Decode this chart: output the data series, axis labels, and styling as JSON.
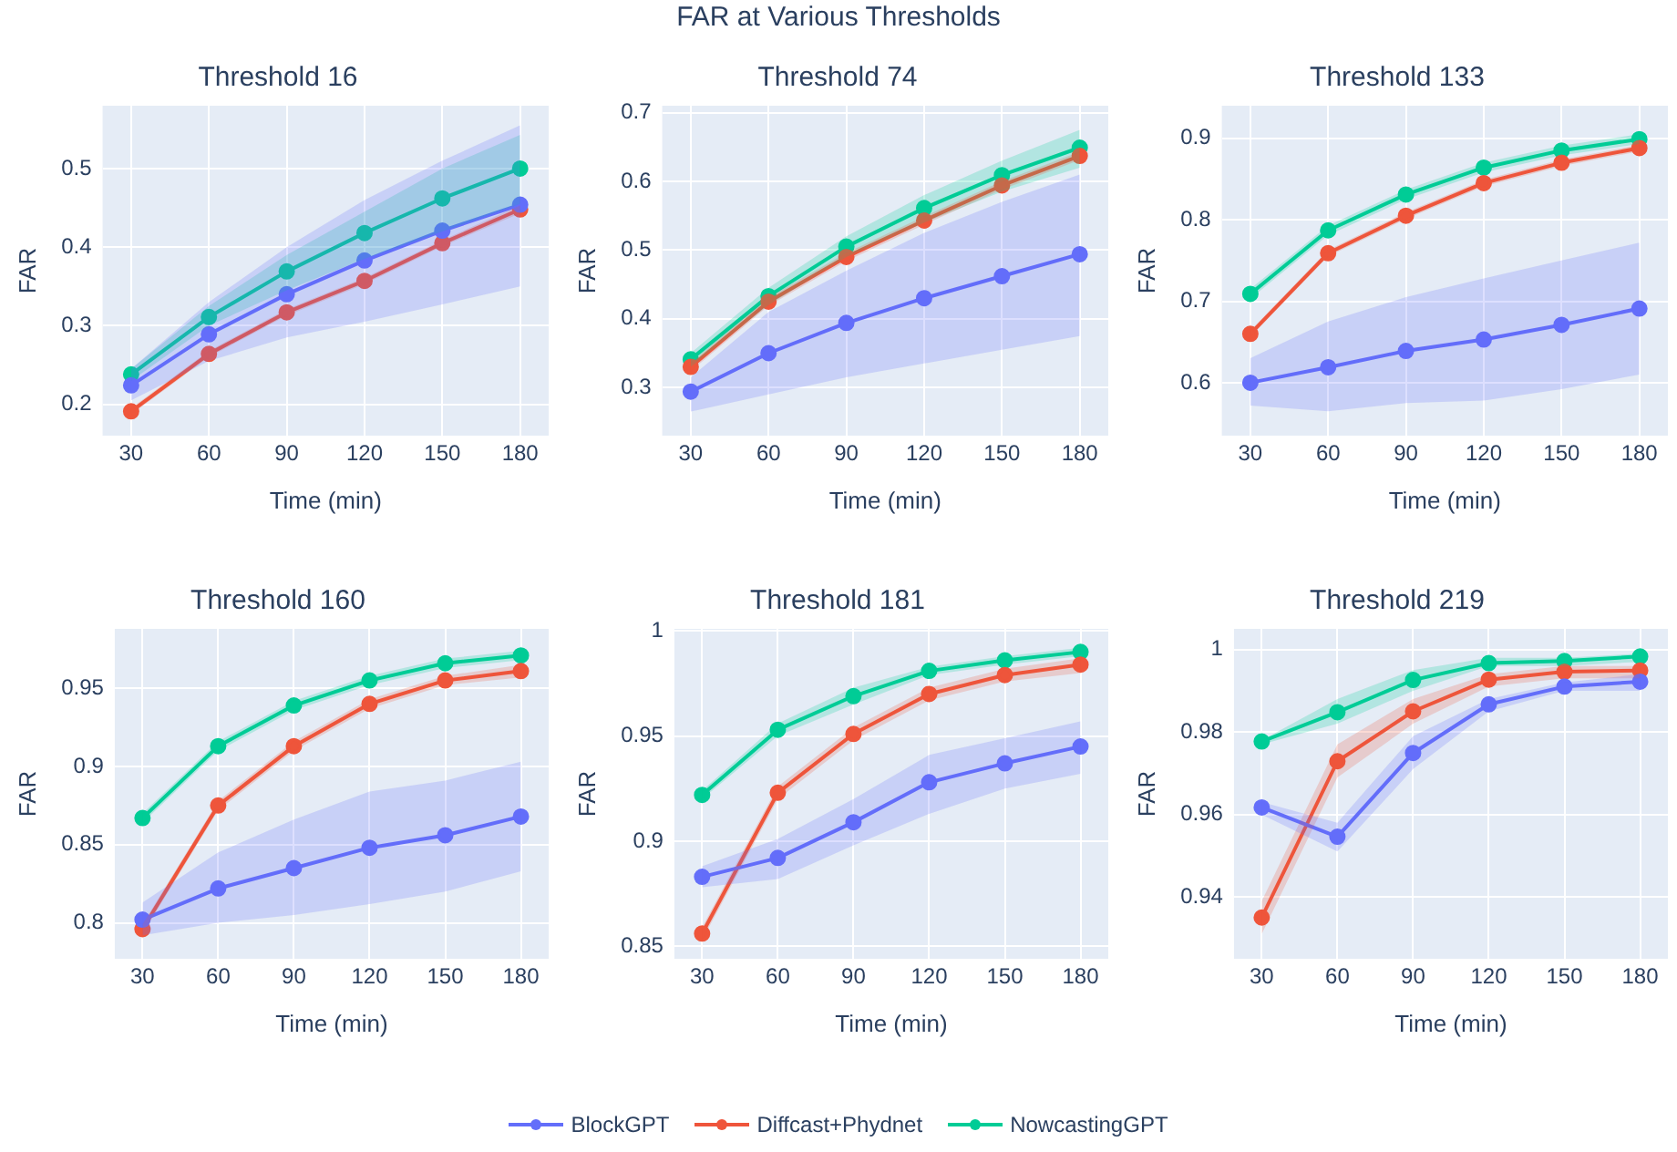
{
  "chart_data": [
    {
      "type": "line",
      "title": "Threshold 16",
      "xlabel": "Time (min)",
      "ylabel": "FAR",
      "annotations": [
        "FAR at Various Thresholds"
      ],
      "x": [
        30,
        60,
        90,
        120,
        150,
        180
      ],
      "xlim": [
        19,
        191
      ],
      "xticks": [
        30,
        60,
        90,
        120,
        150,
        180
      ],
      "ylim": [
        0.16,
        0.58
      ],
      "yticks": [
        0.2,
        0.3,
        0.4,
        0.5
      ],
      "grid": true,
      "marker": "circle",
      "legend": "bottom",
      "series": [
        {
          "name": "BlockGPT",
          "color": "#636efa",
          "values": [
            0.224,
            0.289,
            0.34,
            0.383,
            0.421,
            0.454
          ],
          "lower": [
            0.205,
            0.255,
            0.285,
            0.305,
            0.327,
            0.35
          ],
          "upper": [
            0.245,
            0.33,
            0.4,
            0.46,
            0.51,
            0.555
          ]
        },
        {
          "name": "Diffcast+Phydnet",
          "color": "#ef553b",
          "values": [
            0.191,
            0.264,
            0.317,
            0.357,
            0.405,
            0.448
          ],
          "lower": [
            0.187,
            0.26,
            0.313,
            0.353,
            0.401,
            0.443
          ],
          "upper": [
            0.195,
            0.268,
            0.321,
            0.361,
            0.409,
            0.453
          ]
        },
        {
          "name": "NowcastingGPT",
          "color": "#00cc96",
          "values": [
            0.238,
            0.311,
            0.369,
            0.418,
            0.462,
            0.5
          ],
          "lower": [
            0.23,
            0.3,
            0.345,
            0.385,
            0.42,
            0.455
          ],
          "upper": [
            0.245,
            0.325,
            0.39,
            0.445,
            0.5,
            0.543
          ]
        }
      ]
    },
    {
      "type": "line",
      "title": "Threshold 74",
      "xlabel": "Time (min)",
      "ylabel": "FAR",
      "x": [
        30,
        60,
        90,
        120,
        150,
        180
      ],
      "xlim": [
        19,
        191
      ],
      "xticks": [
        30,
        60,
        90,
        120,
        150,
        180
      ],
      "ylim": [
        0.23,
        0.71
      ],
      "yticks": [
        0.3,
        0.4,
        0.5,
        0.6,
        0.7
      ],
      "grid": true,
      "marker": "circle",
      "series": [
        {
          "color": "#636efa",
          "values": [
            0.294,
            0.35,
            0.394,
            0.43,
            0.462,
            0.494
          ],
          "lower": [
            0.265,
            0.29,
            0.315,
            0.335,
            0.355,
            0.375
          ],
          "upper": [
            0.315,
            0.41,
            0.47,
            0.525,
            0.57,
            0.61
          ]
        },
        {
          "color": "#ef553b",
          "values": [
            0.33,
            0.425,
            0.49,
            0.543,
            0.594,
            0.637
          ],
          "lower": [
            0.324,
            0.419,
            0.484,
            0.537,
            0.588,
            0.631
          ],
          "upper": [
            0.336,
            0.431,
            0.496,
            0.549,
            0.6,
            0.643
          ]
        },
        {
          "color": "#00cc96",
          "values": [
            0.341,
            0.433,
            0.505,
            0.561,
            0.609,
            0.649
          ],
          "lower": [
            0.33,
            0.42,
            0.49,
            0.54,
            0.585,
            0.62
          ],
          "upper": [
            0.35,
            0.445,
            0.52,
            0.58,
            0.63,
            0.675
          ]
        }
      ]
    },
    {
      "type": "line",
      "title": "Threshold 133",
      "xlabel": "Time (min)",
      "ylabel": "FAR",
      "x": [
        30,
        60,
        90,
        120,
        150,
        180
      ],
      "xlim": [
        19,
        191
      ],
      "xticks": [
        30,
        60,
        90,
        120,
        150,
        180
      ],
      "ylim": [
        0.535,
        0.94
      ],
      "yticks": [
        0.6,
        0.7,
        0.8,
        0.9
      ],
      "grid": true,
      "marker": "circle",
      "series": [
        {
          "color": "#636efa",
          "values": [
            0.6,
            0.619,
            0.639,
            0.653,
            0.671,
            0.691
          ],
          "lower": [
            0.572,
            0.565,
            0.575,
            0.578,
            0.592,
            0.61
          ],
          "upper": [
            0.63,
            0.675,
            0.705,
            0.728,
            0.75,
            0.772
          ]
        },
        {
          "color": "#ef553b",
          "values": [
            0.66,
            0.759,
            0.805,
            0.845,
            0.87,
            0.888
          ],
          "lower": [
            0.656,
            0.755,
            0.801,
            0.841,
            0.866,
            0.884
          ],
          "upper": [
            0.664,
            0.763,
            0.809,
            0.849,
            0.874,
            0.892
          ]
        },
        {
          "color": "#00cc96",
          "values": [
            0.709,
            0.787,
            0.831,
            0.864,
            0.885,
            0.899
          ],
          "lower": [
            0.703,
            0.781,
            0.825,
            0.858,
            0.879,
            0.893
          ],
          "upper": [
            0.715,
            0.793,
            0.837,
            0.87,
            0.891,
            0.905
          ]
        }
      ]
    },
    {
      "type": "line",
      "title": "Threshold 160",
      "xlabel": "Time (min)",
      "ylabel": "FAR",
      "x": [
        30,
        60,
        90,
        120,
        150,
        180
      ],
      "xlim": [
        19,
        191
      ],
      "xticks": [
        30,
        60,
        90,
        120,
        150,
        180
      ],
      "ylim": [
        0.777,
        0.988
      ],
      "yticks": [
        0.8,
        0.85,
        0.9,
        0.95
      ],
      "grid": true,
      "marker": "circle",
      "series": [
        {
          "color": "#636efa",
          "values": [
            0.802,
            0.822,
            0.835,
            0.848,
            0.856,
            0.868
          ],
          "lower": [
            0.792,
            0.8,
            0.805,
            0.812,
            0.82,
            0.833
          ],
          "upper": [
            0.813,
            0.845,
            0.866,
            0.884,
            0.891,
            0.903
          ]
        },
        {
          "color": "#ef553b",
          "values": [
            0.796,
            0.875,
            0.913,
            0.94,
            0.955,
            0.961
          ],
          "lower": [
            0.793,
            0.872,
            0.91,
            0.937,
            0.952,
            0.957
          ],
          "upper": [
            0.799,
            0.878,
            0.916,
            0.943,
            0.958,
            0.965
          ]
        },
        {
          "color": "#00cc96",
          "values": [
            0.867,
            0.913,
            0.939,
            0.955,
            0.966,
            0.971
          ],
          "lower": [
            0.864,
            0.91,
            0.936,
            0.952,
            0.963,
            0.968
          ],
          "upper": [
            0.87,
            0.916,
            0.942,
            0.958,
            0.969,
            0.974
          ]
        }
      ]
    },
    {
      "type": "line",
      "title": "Threshold 181",
      "xlabel": "Time (min)",
      "ylabel": "FAR",
      "x": [
        30,
        60,
        90,
        120,
        150,
        180
      ],
      "xlim": [
        19,
        191
      ],
      "xticks": [
        30,
        60,
        90,
        120,
        150,
        180
      ],
      "ylim": [
        0.844,
        1.001
      ],
      "yticks": [
        0.85,
        0.9,
        0.95,
        1
      ],
      "grid": true,
      "marker": "circle",
      "series": [
        {
          "color": "#636efa",
          "values": [
            0.883,
            0.892,
            0.909,
            0.928,
            0.937,
            0.945
          ],
          "lower": [
            0.878,
            0.882,
            0.898,
            0.913,
            0.925,
            0.932
          ],
          "upper": [
            0.888,
            0.901,
            0.92,
            0.941,
            0.949,
            0.957
          ]
        },
        {
          "color": "#ef553b",
          "values": [
            0.856,
            0.923,
            0.951,
            0.97,
            0.979,
            0.984
          ],
          "lower": [
            0.853,
            0.92,
            0.948,
            0.967,
            0.976,
            0.98
          ],
          "upper": [
            0.859,
            0.926,
            0.954,
            0.973,
            0.982,
            0.987
          ]
        },
        {
          "color": "#00cc96",
          "values": [
            0.922,
            0.953,
            0.969,
            0.981,
            0.986,
            0.99
          ],
          "lower": [
            0.92,
            0.95,
            0.965,
            0.979,
            0.984,
            0.988
          ],
          "upper": [
            0.924,
            0.956,
            0.973,
            0.983,
            0.988,
            0.992
          ]
        }
      ]
    },
    {
      "type": "line",
      "title": "Threshold 219",
      "xlabel": "Time (min)",
      "ylabel": "FAR",
      "x": [
        30,
        60,
        90,
        120,
        150,
        180
      ],
      "xlim": [
        19,
        191
      ],
      "xticks": [
        30,
        60,
        90,
        120,
        150,
        180
      ],
      "ylim": [
        0.925,
        1.005
      ],
      "yticks": [
        0.94,
        0.96,
        0.98,
        1
      ],
      "grid": true,
      "marker": "circle",
      "series": [
        {
          "color": "#636efa",
          "values": [
            0.9617,
            0.9546,
            0.9749,
            0.9867,
            0.991,
            0.9922
          ],
          "lower": [
            0.96,
            0.951,
            0.971,
            0.985,
            0.99,
            0.99
          ],
          "upper": [
            0.963,
            0.958,
            0.979,
            0.988,
            0.992,
            0.994
          ]
        },
        {
          "color": "#ef553b",
          "values": [
            0.935,
            0.9729,
            0.985,
            0.9927,
            0.9946,
            0.9949
          ],
          "lower": [
            0.931,
            0.969,
            0.982,
            0.991,
            0.993,
            0.993
          ],
          "upper": [
            0.939,
            0.977,
            0.988,
            0.994,
            0.996,
            0.996
          ]
        },
        {
          "color": "#00cc96",
          "values": [
            0.9777,
            0.9848,
            0.9926,
            0.9967,
            0.9972,
            0.9983
          ],
          "lower": [
            0.977,
            0.982,
            0.99,
            0.996,
            0.996,
            0.997
          ],
          "upper": [
            0.978,
            0.988,
            0.995,
            0.998,
            0.998,
            0.999
          ]
        }
      ]
    }
  ]
}
